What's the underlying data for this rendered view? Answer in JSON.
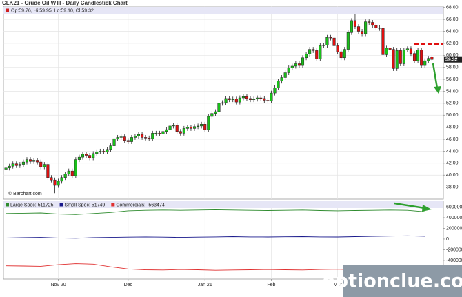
{
  "chart_data": {
    "type": "candlestick",
    "title": "CLK21 - Crude Oil WTI - Daily Candlestick Chart",
    "ohlc_label": "Op:59.76, Hi:59.95, Lo:59.10, Cl:59.32",
    "source": "© Barchart.com",
    "watermark": "optionclue.com",
    "up_color": "#19c019",
    "down_color": "#e01010",
    "grid": true,
    "ylim": [
      36,
      68.2
    ],
    "yticks": [
      {
        "value": 68,
        "label": "68.00"
      },
      {
        "value": 66,
        "label": "66.00"
      },
      {
        "value": 64,
        "label": "64.00"
      },
      {
        "value": 62,
        "label": "62.00"
      },
      {
        "value": 60,
        "label": "60.00"
      },
      {
        "value": 58,
        "label": "58.00"
      },
      {
        "value": 56,
        "label": "56.00"
      },
      {
        "value": 54,
        "label": "54.00"
      },
      {
        "value": 52,
        "label": "52.00"
      },
      {
        "value": 50,
        "label": "50.00"
      },
      {
        "value": 48,
        "label": "48.00"
      },
      {
        "value": 46,
        "label": "46.00"
      },
      {
        "value": 44,
        "label": "44.00"
      },
      {
        "value": 42,
        "label": "42.00"
      },
      {
        "value": 40,
        "label": "40.00"
      },
      {
        "value": 38,
        "label": "38.00"
      }
    ],
    "xlim": [
      0,
      126
    ],
    "xticks": [
      {
        "value": 15,
        "label": "Nov 20"
      },
      {
        "value": 35,
        "label": "Dec"
      },
      {
        "value": 57,
        "label": "Jan 21"
      },
      {
        "value": 76,
        "label": "Feb"
      },
      {
        "value": 95,
        "label": "Mar"
      }
    ],
    "open": [
      41.0,
      41.2,
      41.5,
      41.9,
      41.6,
      41.8,
      42.2,
      42.6,
      42.3,
      42.5,
      42.2,
      41.4,
      41.8,
      39.6,
      39.2,
      38.3,
      39.0,
      39.6,
      40.2,
      40.7,
      39.9,
      42.6,
      43.0,
      43.5,
      43.3,
      42.9,
      43.6,
      43.9,
      44.0,
      43.9,
      44.3,
      44.9,
      46.1,
      46.3,
      46.4,
      45.8,
      45.6,
      46.3,
      46.5,
      46.8,
      46.3,
      46.2,
      46.1,
      47.0,
      47.0,
      46.9,
      47.3,
      47.6,
      48.2,
      48.3,
      47.3,
      47.0,
      47.8,
      48.0,
      47.8,
      48.1,
      48.2,
      48.5,
      47.6,
      49.8,
      50.3,
      50.6,
      52.0,
      52.1,
      52.8,
      52.6,
      52.7,
      52.2,
      52.9,
      53.1,
      52.8,
      52.6,
      52.7,
      52.9,
      52.8,
      52.5,
      52.4,
      53.7,
      54.6,
      55.7,
      56.3,
      57.1,
      57.9,
      58.2,
      58.6,
      58.3,
      59.6,
      60.2,
      61.0,
      60.8,
      59.4,
      61.6,
      61.7,
      63.0,
      62.9,
      61.6,
      60.6,
      59.6,
      61.0,
      63.8,
      65.8,
      64.8,
      64.0,
      63.6,
      65.6,
      65.5,
      65.0,
      64.6,
      64.5,
      60.1,
      61.2,
      61.0,
      57.8,
      60.8,
      58.6,
      60.9,
      61.1,
      60.3,
      59.1,
      60.9,
      58.3,
      59.1,
      59.76
    ],
    "high": [
      41.6,
      41.9,
      42.3,
      42.3,
      42.2,
      42.6,
      43.0,
      43.0,
      42.9,
      42.9,
      42.6,
      42.2,
      42.2,
      40.0,
      39.6,
      39.4,
      40.0,
      40.6,
      41.1,
      41.1,
      43.0,
      43.4,
      43.9,
      43.9,
      43.7,
      44.0,
      44.3,
      44.4,
      44.4,
      44.7,
      45.3,
      46.5,
      46.7,
      46.8,
      46.8,
      46.2,
      46.7,
      46.9,
      47.2,
      47.2,
      46.7,
      46.6,
      47.4,
      47.4,
      47.4,
      47.7,
      48.0,
      48.6,
      48.7,
      48.7,
      47.7,
      48.2,
      48.4,
      48.4,
      48.5,
      48.6,
      48.9,
      48.9,
      50.2,
      50.7,
      51.0,
      52.4,
      52.5,
      53.2,
      53.2,
      53.1,
      53.1,
      53.3,
      53.5,
      53.5,
      53.2,
      53.1,
      53.3,
      53.3,
      53.2,
      52.9,
      54.1,
      55.0,
      56.1,
      56.7,
      57.5,
      58.3,
      58.6,
      59.0,
      59.0,
      60.0,
      60.6,
      61.4,
      61.4,
      61.2,
      62.0,
      62.1,
      63.4,
      63.4,
      63.3,
      62.0,
      61.0,
      61.4,
      64.2,
      66.2,
      67.9,
      65.2,
      64.4,
      66.0,
      66.0,
      65.9,
      65.4,
      65.0,
      64.9,
      61.6,
      61.6,
      61.4,
      61.2,
      61.2,
      61.3,
      61.5,
      61.5,
      60.7,
      61.3,
      61.3,
      59.5,
      59.9,
      59.95
    ],
    "low": [
      40.6,
      40.8,
      41.1,
      41.2,
      41.2,
      41.4,
      41.8,
      41.9,
      41.9,
      41.8,
      41.0,
      41.0,
      39.2,
      38.8,
      37.0,
      37.9,
      38.6,
      39.2,
      39.8,
      39.5,
      39.5,
      42.2,
      42.6,
      42.9,
      42.5,
      42.5,
      43.2,
      43.5,
      43.5,
      43.5,
      43.9,
      44.5,
      45.7,
      45.9,
      45.4,
      45.2,
      45.2,
      45.9,
      46.1,
      45.9,
      45.8,
      45.7,
      45.7,
      46.6,
      46.5,
      46.5,
      46.9,
      47.2,
      47.8,
      46.9,
      46.6,
      46.6,
      47.4,
      47.4,
      47.4,
      47.7,
      47.8,
      47.2,
      47.2,
      49.4,
      49.9,
      50.2,
      51.6,
      51.7,
      52.2,
      52.2,
      51.8,
      51.8,
      52.5,
      52.4,
      52.2,
      52.2,
      52.3,
      52.4,
      52.1,
      52.0,
      52.0,
      53.3,
      54.2,
      55.3,
      55.9,
      56.7,
      57.5,
      57.8,
      57.9,
      57.9,
      59.2,
      59.8,
      60.4,
      59.0,
      59.0,
      61.2,
      61.3,
      62.5,
      61.2,
      60.2,
      59.2,
      59.2,
      60.6,
      63.4,
      64.4,
      63.6,
      63.2,
      63.2,
      65.1,
      64.6,
      64.2,
      64.1,
      59.7,
      59.7,
      60.6,
      57.4,
      57.4,
      58.2,
      58.2,
      60.5,
      59.9,
      58.7,
      58.7,
      57.9,
      57.9,
      58.7,
      59.1
    ],
    "close": [
      41.2,
      41.5,
      41.9,
      41.6,
      41.8,
      42.2,
      42.6,
      42.3,
      42.5,
      42.2,
      41.4,
      41.8,
      39.6,
      39.2,
      38.3,
      39.0,
      39.6,
      40.2,
      40.7,
      39.9,
      42.6,
      43.0,
      43.5,
      43.3,
      42.9,
      43.6,
      43.9,
      44.0,
      43.9,
      44.3,
      44.9,
      46.1,
      46.3,
      46.4,
      45.8,
      45.6,
      46.3,
      46.5,
      46.8,
      46.3,
      46.2,
      46.1,
      47.0,
      47.0,
      46.9,
      47.3,
      47.6,
      48.2,
      48.3,
      47.3,
      47.0,
      47.8,
      48.0,
      47.8,
      48.1,
      48.2,
      48.5,
      47.6,
      49.8,
      50.3,
      50.6,
      52.0,
      52.1,
      52.8,
      52.6,
      52.7,
      52.2,
      52.9,
      53.1,
      52.8,
      52.6,
      52.7,
      52.9,
      52.8,
      52.5,
      52.4,
      53.7,
      54.6,
      55.7,
      56.3,
      57.1,
      57.9,
      58.2,
      58.6,
      58.3,
      59.6,
      60.2,
      61.0,
      60.8,
      59.4,
      61.6,
      61.7,
      63.0,
      62.9,
      61.6,
      60.6,
      59.6,
      61.0,
      63.8,
      65.8,
      64.8,
      64.0,
      63.6,
      65.6,
      65.5,
      65.0,
      64.6,
      64.5,
      60.1,
      61.2,
      61.0,
      57.8,
      60.8,
      58.6,
      60.9,
      61.1,
      60.3,
      59.1,
      60.9,
      58.3,
      59.1,
      59.5,
      59.32
    ],
    "cot": {
      "type": "line",
      "y2lim": [
        -750000,
        710000
      ],
      "y2ticks": [
        600000,
        400000,
        200000,
        0,
        -200000,
        -400000,
        -600000
      ],
      "x": [
        0,
        5,
        10,
        15,
        20,
        25,
        30,
        35,
        40,
        45,
        50,
        55,
        60,
        65,
        70,
        75,
        80,
        85,
        90,
        95,
        100,
        105,
        110,
        115,
        120
      ],
      "series": [
        {
          "name": "Large Spec",
          "legend": "Large Spec: 511725",
          "color": "#2e8b2e",
          "axis": "y2",
          "values": [
            480000,
            485000,
            490000,
            470000,
            460000,
            480000,
            500000,
            530000,
            540000,
            545000,
            540000,
            545000,
            550000,
            545000,
            540000,
            535000,
            540000,
            545000,
            535000,
            530000,
            535000,
            540000,
            545000,
            540000,
            511725
          ]
        },
        {
          "name": "Small Spec",
          "legend": "Small Spec: 51749",
          "color": "#1a1a8c",
          "axis": "y2",
          "values": [
            20000,
            25000,
            30000,
            20000,
            15000,
            25000,
            30000,
            35000,
            40000,
            35000,
            30000,
            35000,
            40000,
            45000,
            40000,
            38000,
            42000,
            45000,
            40000,
            38000,
            45000,
            50000,
            55000,
            60000,
            51749
          ]
        },
        {
          "name": "Commercials",
          "legend": "Commercials: -563474",
          "color": "#e03030",
          "axis": "y2",
          "values": [
            -500000,
            -505000,
            -510000,
            -480000,
            -460000,
            -470000,
            -520000,
            -560000,
            -575000,
            -580000,
            -570000,
            -575000,
            -585000,
            -580000,
            -575000,
            -570000,
            -575000,
            -580000,
            -570000,
            -565000,
            -575000,
            -585000,
            -590000,
            -595000,
            -563474
          ]
        }
      ]
    }
  }
}
